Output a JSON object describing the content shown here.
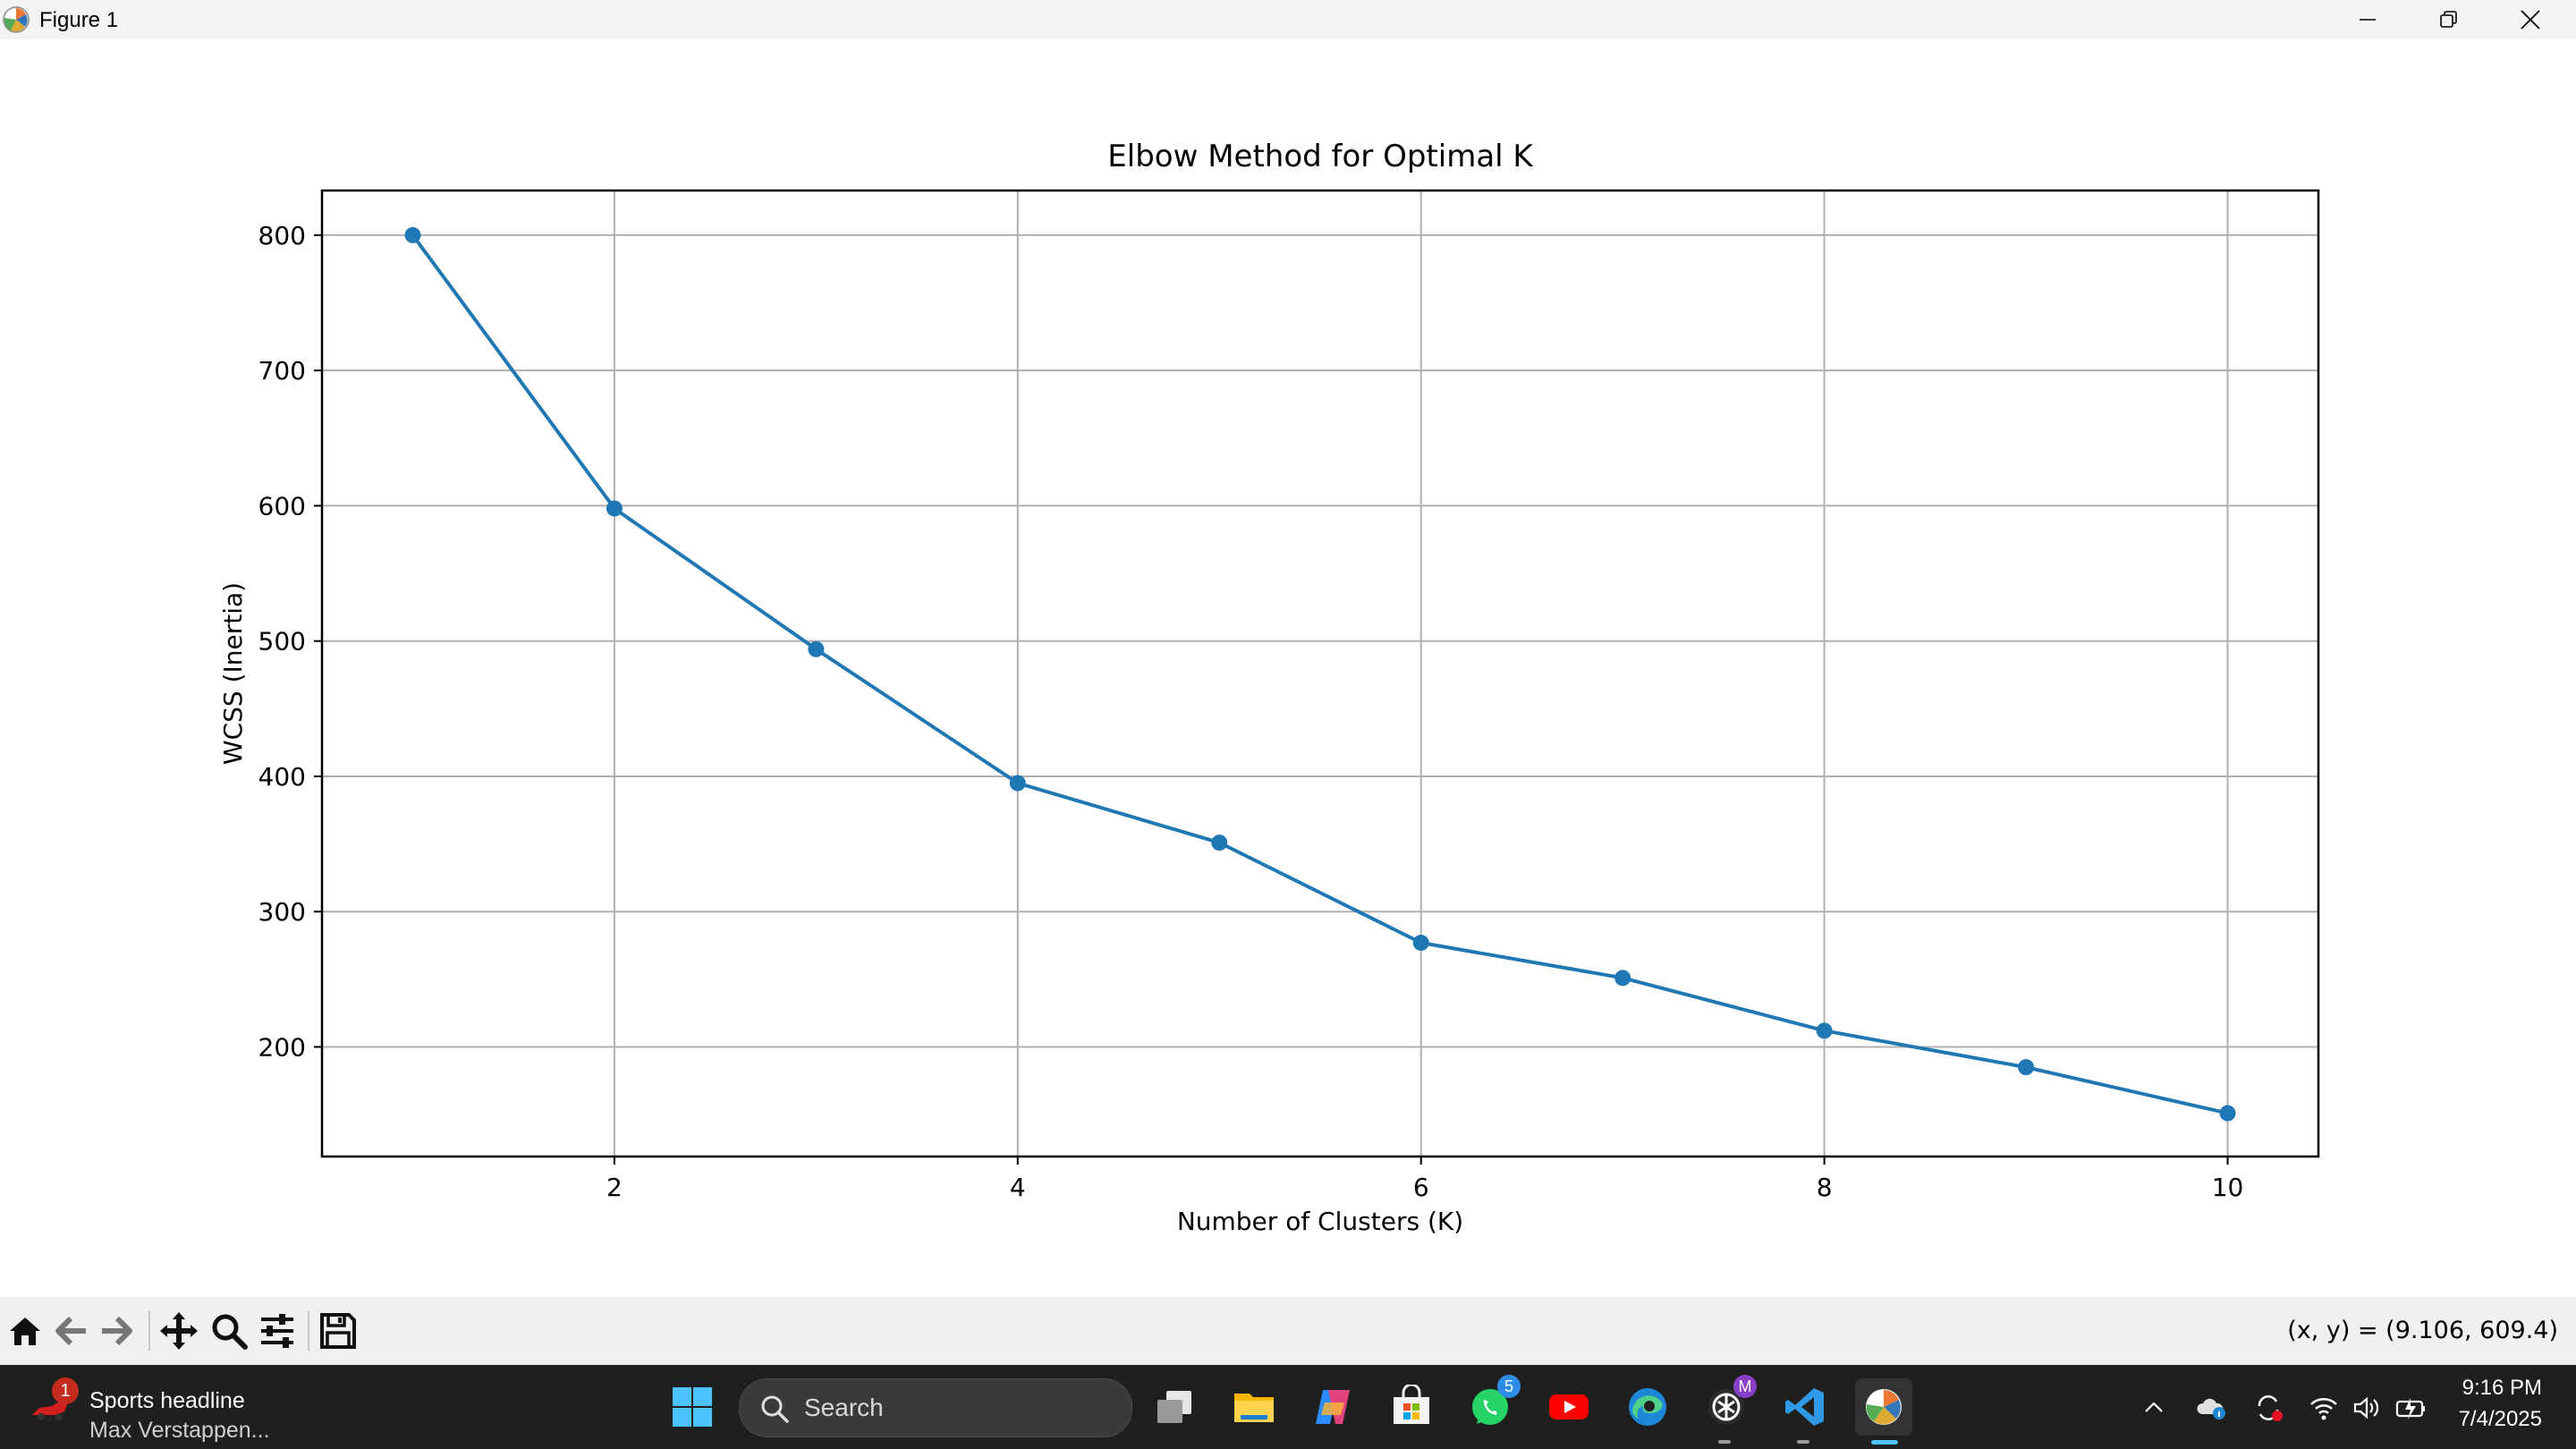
{
  "window": {
    "title": "Figure 1",
    "controls": [
      "minimize",
      "restore",
      "close"
    ]
  },
  "chart_data": {
    "type": "line",
    "title": "Elbow Method for Optimal K",
    "xlabel": "Number of Clusters (K)",
    "ylabel": "WCSS (Inertia)",
    "x": [
      1,
      2,
      3,
      4,
      5,
      6,
      7,
      8,
      9,
      10
    ],
    "series": [
      {
        "values": [
          800,
          598,
          494,
          395,
          351,
          277,
          251,
          212,
          185,
          151
        ],
        "color": "#1f77b4",
        "marker": "circle"
      }
    ],
    "xticks": [
      2,
      4,
      6,
      8,
      10
    ],
    "yticks": [
      200,
      300,
      400,
      500,
      600,
      700,
      800
    ],
    "xlim": [
      0.55,
      10.45
    ],
    "ylim": [
      119,
      833
    ],
    "grid": true
  },
  "toolbar": {
    "buttons": [
      "home-icon",
      "back-icon",
      "forward-icon",
      "pan-icon",
      "zoom-icon",
      "configure-icon",
      "save-icon"
    ],
    "coords": "(x, y) = (9.106, 609.4)"
  },
  "taskbar": {
    "news": {
      "title": "Sports headline",
      "subtitle": "Max Verstappen...",
      "badge": "1"
    },
    "search_placeholder": "Search",
    "apps": [
      "task-view",
      "file-explorer",
      "copilot",
      "microsoft-store",
      "whatsapp",
      "youtube",
      "edge",
      "chatgpt",
      "vscode",
      "matplotlib-figure"
    ],
    "whatsapp_badge": "5",
    "chatgpt_badge": "M",
    "clock": {
      "time": "9:16 PM",
      "date": "7/4/2025"
    }
  },
  "colors": {
    "line": "#1f77b4",
    "grid": "#b0b0b0",
    "taskbar_bg": "#1f1f1f",
    "toolbar_bg": "#f0f0f0"
  }
}
